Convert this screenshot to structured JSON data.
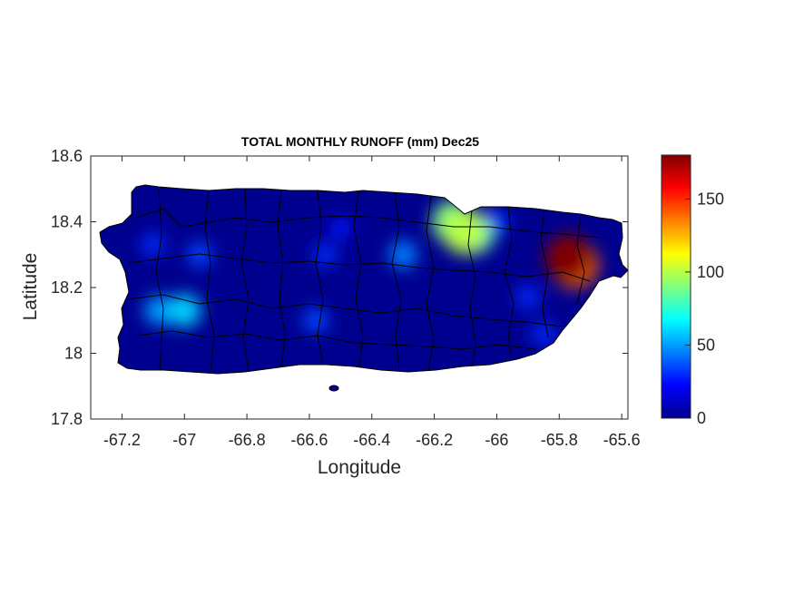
{
  "chart_data": {
    "type": "heatmap",
    "title": "TOTAL MONTHLY RUNOFF (mm) Dec25",
    "xlabel": "Longitude",
    "ylabel": "Latitude",
    "xlim": [
      -67.3,
      -65.58
    ],
    "ylim": [
      17.8,
      18.6
    ],
    "xticks": [
      "-67.2",
      "-67",
      "-66.8",
      "-66.6",
      "-66.4",
      "-66.2",
      "-66",
      "-65.8",
      "-65.6"
    ],
    "xtick_values": [
      -67.2,
      -67.0,
      -66.8,
      -66.6,
      -66.4,
      -66.2,
      -66.0,
      -65.8,
      -65.6
    ],
    "yticks": [
      "17.8",
      "18",
      "18.2",
      "18.4",
      "18.6"
    ],
    "ytick_values": [
      17.8,
      18.0,
      18.2,
      18.4,
      18.6
    ],
    "colorbar": {
      "colormap": "jet",
      "clim": [
        0,
        180
      ],
      "ticks": [
        "0",
        "50",
        "100",
        "150"
      ],
      "tick_values": [
        0,
        50,
        100,
        150
      ]
    },
    "background_value": 8,
    "hotspots": [
      {
        "lon": -65.77,
        "lat": 18.29,
        "value": 180
      },
      {
        "lon": -65.75,
        "lat": 18.27,
        "value": 140
      },
      {
        "lon": -66.1,
        "lat": 18.37,
        "value": 100
      },
      {
        "lon": -66.14,
        "lat": 18.4,
        "value": 90
      },
      {
        "lon": -66.07,
        "lat": 18.36,
        "value": 75
      },
      {
        "lon": -67.0,
        "lat": 18.13,
        "value": 60
      },
      {
        "lon": -67.08,
        "lat": 18.13,
        "value": 50
      },
      {
        "lon": -66.95,
        "lat": 18.3,
        "value": 35
      },
      {
        "lon": -67.1,
        "lat": 18.33,
        "value": 30
      },
      {
        "lon": -66.3,
        "lat": 18.3,
        "value": 45
      },
      {
        "lon": -66.58,
        "lat": 18.1,
        "value": 35
      },
      {
        "lon": -66.55,
        "lat": 18.3,
        "value": 30
      },
      {
        "lon": -65.9,
        "lat": 18.17,
        "value": 30
      },
      {
        "lon": -65.85,
        "lat": 18.06,
        "value": 30
      },
      {
        "lon": -66.5,
        "lat": 18.38,
        "value": 25
      },
      {
        "lon": -66.0,
        "lat": 18.4,
        "value": 30
      }
    ]
  }
}
